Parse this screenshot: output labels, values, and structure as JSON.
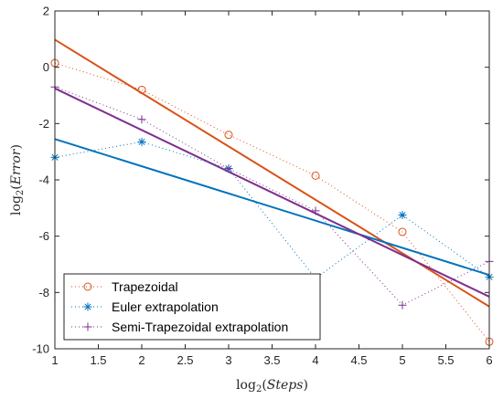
{
  "chart_data": {
    "type": "line",
    "xlabel": "log_2(Steps)",
    "ylabel": "log_2(Error)",
    "xlim": [
      1,
      6
    ],
    "ylim": [
      -10,
      2
    ],
    "xticks": [
      "1",
      "1.5",
      "2",
      "2.5",
      "3",
      "3.5",
      "4",
      "4.5",
      "5",
      "5.5",
      "6"
    ],
    "yticks": [
      "2",
      "0",
      "-2",
      "-4",
      "-6",
      "-8",
      "-10"
    ],
    "grid": false,
    "legend_position": "bottom-left",
    "x": [
      1,
      2,
      3,
      4,
      5,
      6
    ],
    "series": [
      {
        "name": "Trapezoidal",
        "color": "#D95319",
        "marker": "circle",
        "values": [
          0.15,
          -0.8,
          -2.4,
          -3.85,
          -5.85,
          -9.75
        ],
        "fit": [
          0.98,
          -8.5
        ]
      },
      {
        "name": "Euler extrapolation",
        "color": "#0072BD",
        "marker": "asterisk",
        "values": [
          -3.2,
          -2.65,
          -3.6,
          -7.5,
          -5.25,
          -7.45
        ],
        "fit": [
          -2.55,
          -7.38
        ]
      },
      {
        "name": "Semi-Trapezoidal extrapolation",
        "color": "#7E2F8E",
        "marker": "plus",
        "values": [
          -0.7,
          -1.85,
          -3.6,
          -5.1,
          -8.45,
          -6.9
        ],
        "fit": [
          -0.75,
          -8.15
        ]
      }
    ]
  }
}
